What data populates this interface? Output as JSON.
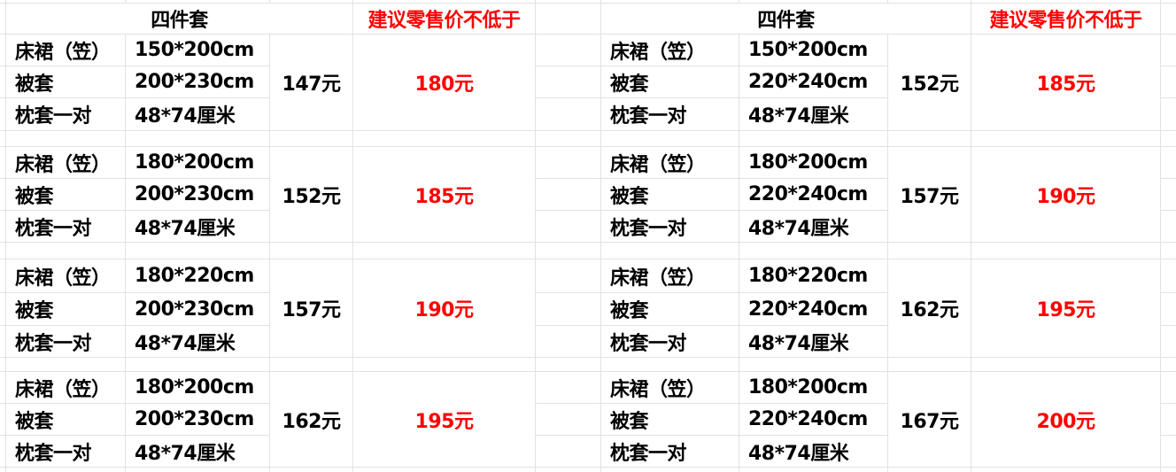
{
  "colors": {
    "price_red": "#ff0000",
    "text": "#000000",
    "grid": "#e2e2e2"
  },
  "tables": [
    {
      "header": {
        "title": "四件套",
        "price_header": "建议零售价不低于"
      },
      "groups": [
        {
          "items": [
            {
              "name": "床裙（笠）",
              "size": "150*200cm"
            },
            {
              "name": "被套",
              "size": "200*230cm"
            },
            {
              "name": "枕套一对",
              "size": "48*74厘米"
            }
          ],
          "price": "147元",
          "retail": "180元"
        },
        {
          "items": [
            {
              "name": "床裙（笠）",
              "size": "180*200cm"
            },
            {
              "name": "被套",
              "size": "200*230cm"
            },
            {
              "name": "枕套一对",
              "size": "48*74厘米"
            }
          ],
          "price": "152元",
          "retail": "185元"
        },
        {
          "items": [
            {
              "name": "床裙（笠）",
              "size": "180*220cm"
            },
            {
              "name": "被套",
              "size": "200*230cm"
            },
            {
              "name": "枕套一对",
              "size": "48*74厘米"
            }
          ],
          "price": "157元",
          "retail": "190元"
        },
        {
          "items": [
            {
              "name": "床裙（笠）",
              "size": "180*200cm"
            },
            {
              "name": "被套",
              "size": "200*230cm"
            },
            {
              "name": "枕套一对",
              "size": "48*74厘米"
            }
          ],
          "price": "162元",
          "retail": "195元"
        }
      ]
    },
    {
      "header": {
        "title": "四件套",
        "price_header": "建议零售价不低于"
      },
      "groups": [
        {
          "items": [
            {
              "name": "床裙（笠）",
              "size": "150*200cm"
            },
            {
              "name": "被套",
              "size": "220*240cm"
            },
            {
              "name": "枕套一对",
              "size": "48*74厘米"
            }
          ],
          "price": "152元",
          "retail": "185元"
        },
        {
          "items": [
            {
              "name": "床裙（笠）",
              "size": "180*200cm"
            },
            {
              "name": "被套",
              "size": "220*240cm"
            },
            {
              "name": "枕套一对",
              "size": "48*74厘米"
            }
          ],
          "price": "157元",
          "retail": "190元"
        },
        {
          "items": [
            {
              "name": "床裙（笠）",
              "size": "180*220cm"
            },
            {
              "name": "被套",
              "size": "220*240cm"
            },
            {
              "name": "枕套一对",
              "size": "48*74厘米"
            }
          ],
          "price": "162元",
          "retail": "195元"
        },
        {
          "items": [
            {
              "name": "床裙（笠）",
              "size": "180*200cm"
            },
            {
              "name": "被套",
              "size": "220*240cm"
            },
            {
              "name": "枕套一对",
              "size": "48*74厘米"
            }
          ],
          "price": "167元",
          "retail": "200元"
        }
      ]
    }
  ]
}
